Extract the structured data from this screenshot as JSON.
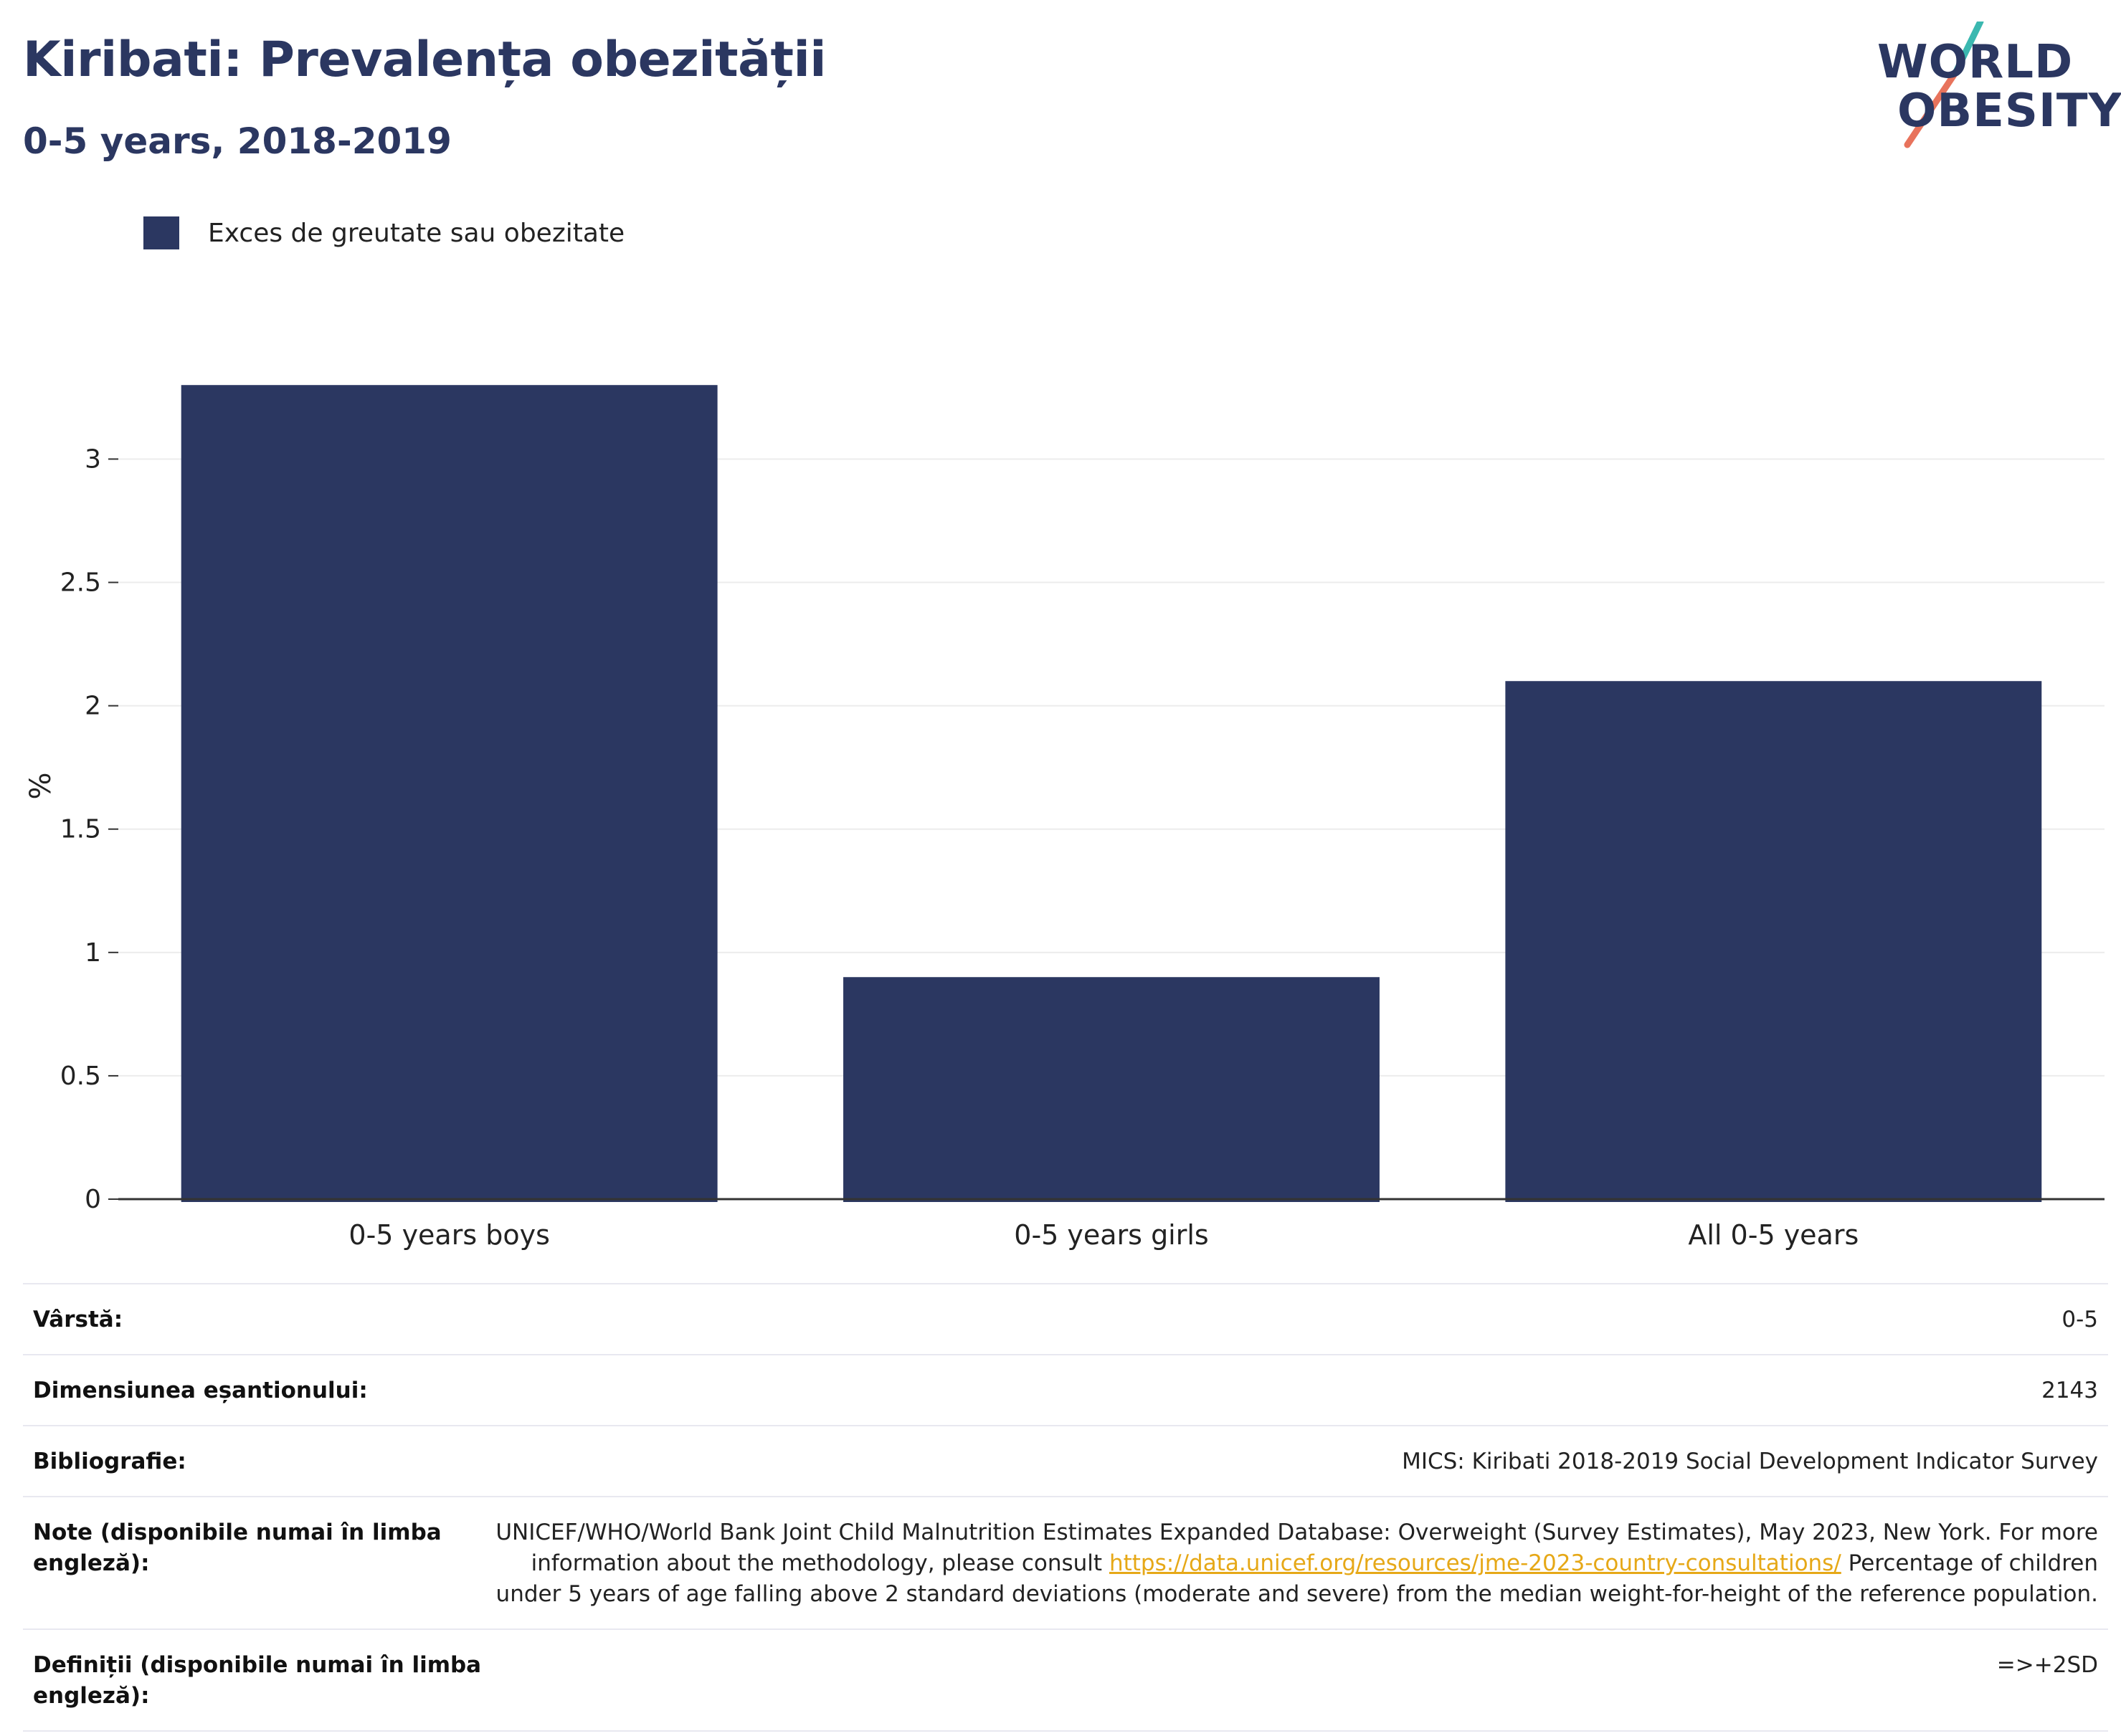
{
  "header": {
    "title": "Kiribati: Prevalența obezității",
    "subtitle": "0-5 years, 2018-2019"
  },
  "logo": {
    "line1": "WORLD",
    "line2": "OBESITY",
    "colors": {
      "text": "#2b3761",
      "slash_top": "#3bb8b0",
      "slash_bottom": "#e8735c"
    }
  },
  "legend": {
    "label": "Exces de greutate sau obezitate"
  },
  "colors": {
    "bar": "#2b3761",
    "grid": "#ececec",
    "axis": "#333333",
    "link": "#e6a817"
  },
  "chart_data": {
    "type": "bar",
    "categories": [
      "0-5 years boys",
      "0-5 years girls",
      "All 0-5 years"
    ],
    "series": [
      {
        "name": "Exces de greutate sau obezitate",
        "values": [
          3.3,
          0.9,
          2.1
        ]
      }
    ],
    "ylabel": "%",
    "xlabel": "",
    "ylim": [
      0,
      3.35
    ],
    "yticks": [
      0,
      0.5,
      1,
      1.5,
      2,
      2.5,
      3
    ],
    "ytick_labels": [
      "0",
      "0.5",
      "1",
      "1.5",
      "2",
      "2.5",
      "3"
    ],
    "grid": true,
    "legend_position": "top-left"
  },
  "info": {
    "rows": [
      {
        "key": "Vârstă:",
        "value": "0-5"
      },
      {
        "key": "Dimensiunea eșantionului:",
        "value": "2143"
      },
      {
        "key": "Bibliografie:",
        "value": "MICS: Kiribati 2018-2019 Social Development Indicator Survey"
      }
    ],
    "notes": {
      "key": "Note (disponibile numai în limba engleză):",
      "text_before": "UNICEF/WHO/World Bank Joint Child Malnutrition Estimates Expanded Database: Overweight (Survey Estimates), May 2023, New York. For more information about the methodology, please consult ",
      "link": "https://data.unicef.org/resources/jme-2023-country-consultations/",
      "text_after": " Percentage of children under 5 years of age falling above 2 standard deviations (moderate and severe) from the median weight-for-height of the reference population."
    },
    "definitions": {
      "key": "Definiții (disponibile numai în limba engleză):",
      "value": "=>+2SD"
    }
  }
}
